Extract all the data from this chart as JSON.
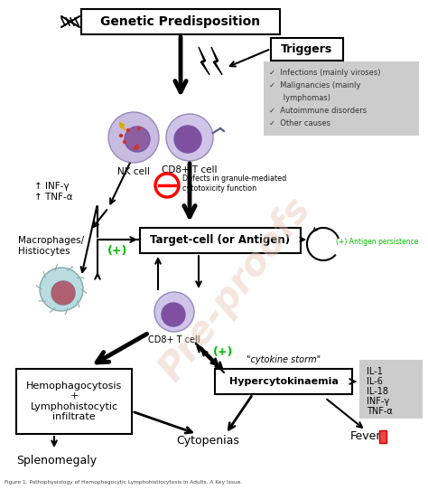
{
  "title": "Genetic Predisposition",
  "triggers_box": "Triggers",
  "triggers_items": [
    "✓  Infections (mainly viroses)",
    "✓  Malignancies (mainly\n       lymphomas)",
    "✓  Autoimmune disorders",
    "✓  Other causes"
  ],
  "target_cell_label": "Target-cell (or Antigen)",
  "hypercyto_label": "Hypercytokinaemia",
  "hypercyto_subtitle": "\"cytokine storm\"",
  "hemo_label": "Hemophagocytosis\n+\nLymphohistocytic\ninfiltrate",
  "nk_label": "NK cell",
  "cd8_label1": "CD8+ T cell",
  "cd8_label2": "CD8+ T cell",
  "defects_label": "Defects in granule-mediated\ncytotoxicity function",
  "inf_tnf_label": "↑ INF-γ\n↑ TNF-α",
  "macrophage_label": "Macrophages/\nHistiocytes",
  "antigen_label": "(+) Antigen persistence",
  "plus1_label": "(+)",
  "plus2_label": "(+)",
  "cytokines_list": [
    "IL-1",
    "IL-6",
    "IL-18",
    "INF-γ",
    "TNF-α"
  ],
  "fever_label": "Fever",
  "cytopenia_label": "Cytopenias",
  "splenomegaly_label": "Splenomegaly",
  "bg_color": "#ffffff",
  "green_color": "#00bb00",
  "gray_bg": "#cccccc",
  "watermark": "Pre-proofs",
  "caption": "Figure 1. Pathophysiology of Hemophagocytic Lymphohistiocytosis in Adults. A Key Issue."
}
